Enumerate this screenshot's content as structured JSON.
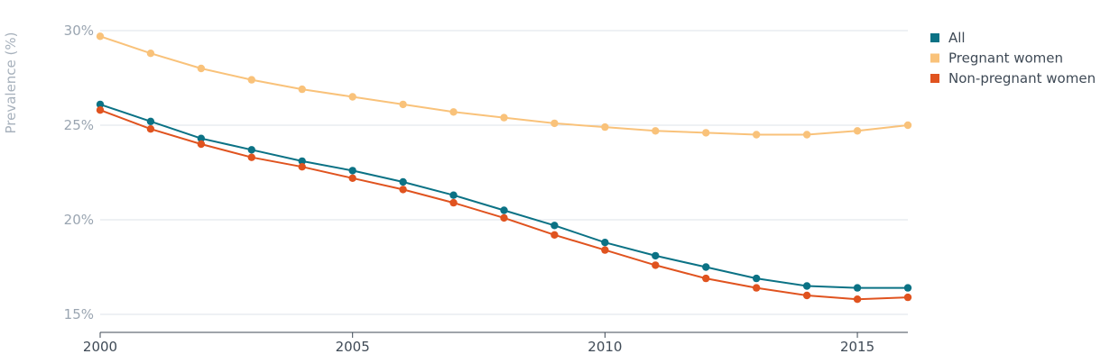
{
  "chart_data": {
    "type": "line",
    "title": "",
    "xlabel": "",
    "ylabel": "Prevalence (%)",
    "x": [
      2000,
      2001,
      2002,
      2003,
      2004,
      2005,
      2006,
      2007,
      2008,
      2009,
      2010,
      2011,
      2012,
      2013,
      2014,
      2015,
      2016
    ],
    "xlim": [
      2000,
      2016
    ],
    "ylim": [
      14,
      30
    ],
    "yticks": [
      15,
      20,
      25,
      30
    ],
    "ytick_labels": [
      "15%",
      "20%",
      "25%",
      "30%"
    ],
    "xticks": [
      2000,
      2005,
      2010,
      2015
    ],
    "xtick_labels": [
      "2000",
      "2005",
      "2010",
      "2015"
    ],
    "grid": true,
    "legend_position": "top-right",
    "series": [
      {
        "name": "All",
        "color": "#0b7285",
        "values": [
          26.1,
          25.2,
          24.3,
          23.7,
          23.1,
          22.6,
          22.0,
          21.3,
          20.5,
          19.7,
          18.8,
          18.1,
          17.5,
          16.9,
          16.5,
          16.4,
          16.4
        ]
      },
      {
        "name": "Pregnant women",
        "color": "#f9c27a",
        "values": [
          29.7,
          28.8,
          28.0,
          27.4,
          26.9,
          26.5,
          26.1,
          25.7,
          25.4,
          25.1,
          24.9,
          24.7,
          24.6,
          24.5,
          24.5,
          24.7,
          25.0
        ]
      },
      {
        "name": "Non-pregnant women",
        "color": "#e0531f",
        "values": [
          25.8,
          24.8,
          24.0,
          23.3,
          22.8,
          22.2,
          21.6,
          20.9,
          20.1,
          19.2,
          18.4,
          17.6,
          16.9,
          16.4,
          16.0,
          15.8,
          15.9
        ]
      }
    ]
  }
}
